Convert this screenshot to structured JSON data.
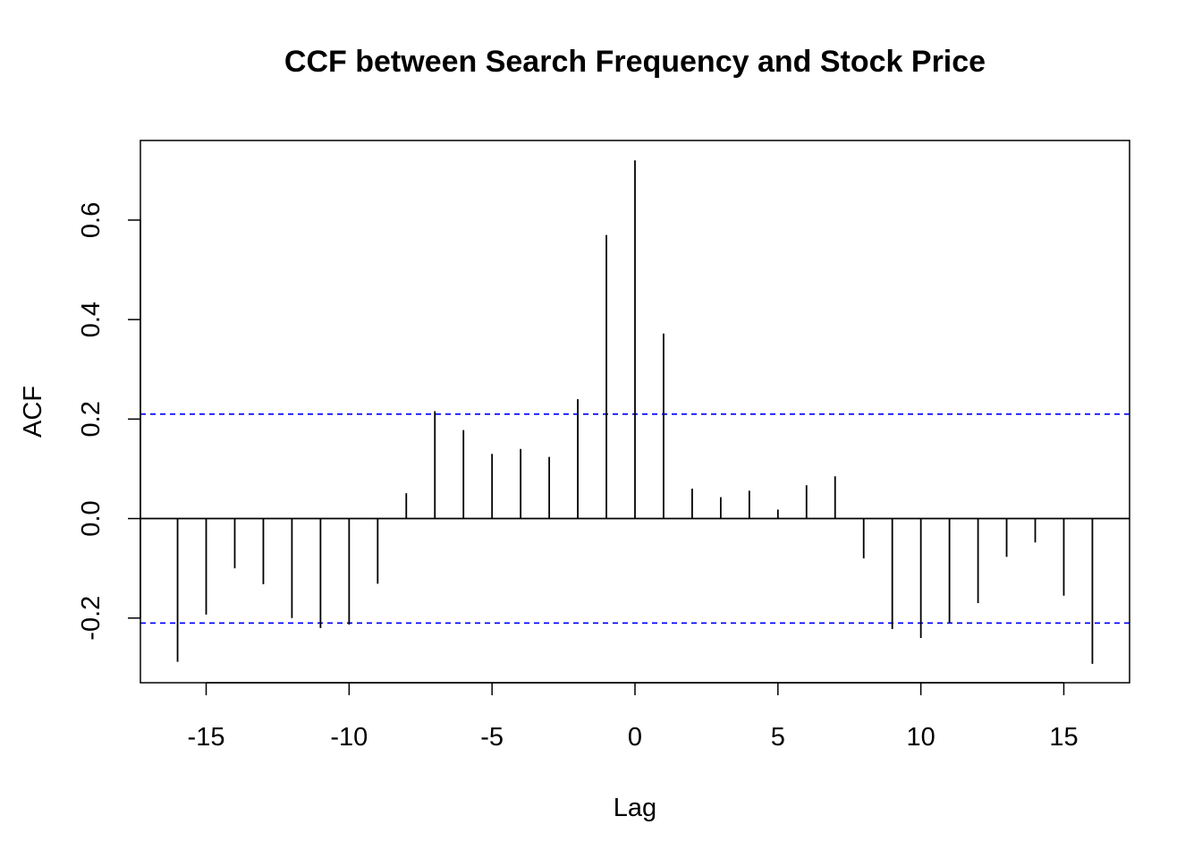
{
  "chart_data": {
    "type": "bar",
    "title": "CCF between Search Frequency and Stock Price",
    "xlabel": "Lag",
    "ylabel": "ACF",
    "xlim": [
      -17.3,
      17.3
    ],
    "ylim": [
      -0.33,
      0.76
    ],
    "x_ticks": [
      -15,
      -10,
      -5,
      0,
      5,
      10,
      15
    ],
    "x_tick_labels": [
      "-15",
      "-10",
      "-5",
      "0",
      "5",
      "10",
      "15"
    ],
    "y_ticks": [
      -0.2,
      0.0,
      0.2,
      0.4,
      0.6
    ],
    "y_tick_labels": [
      "-0.2",
      "0.0",
      "0.2",
      "0.4",
      "0.6"
    ],
    "confidence_bound": 0.21,
    "confidence_color": "#0000ff",
    "bar_color": "#000000",
    "grid": false,
    "lags": [
      -16,
      -15,
      -14,
      -13,
      -12,
      -11,
      -10,
      -9,
      -8,
      -7,
      -6,
      -5,
      -4,
      -3,
      -2,
      -1,
      0,
      1,
      2,
      3,
      4,
      5,
      6,
      7,
      8,
      9,
      10,
      11,
      12,
      13,
      14,
      15,
      16
    ],
    "values": [
      -0.288,
      -0.193,
      -0.1,
      -0.132,
      -0.2,
      -0.22,
      -0.213,
      -0.131,
      0.051,
      0.216,
      0.178,
      0.13,
      0.14,
      0.124,
      0.24,
      0.57,
      0.72,
      0.372,
      0.06,
      0.043,
      0.056,
      0.018,
      0.067,
      0.085,
      -0.08,
      -0.222,
      -0.24,
      -0.21,
      -0.17,
      -0.077,
      -0.048,
      -0.155,
      -0.292
    ]
  }
}
